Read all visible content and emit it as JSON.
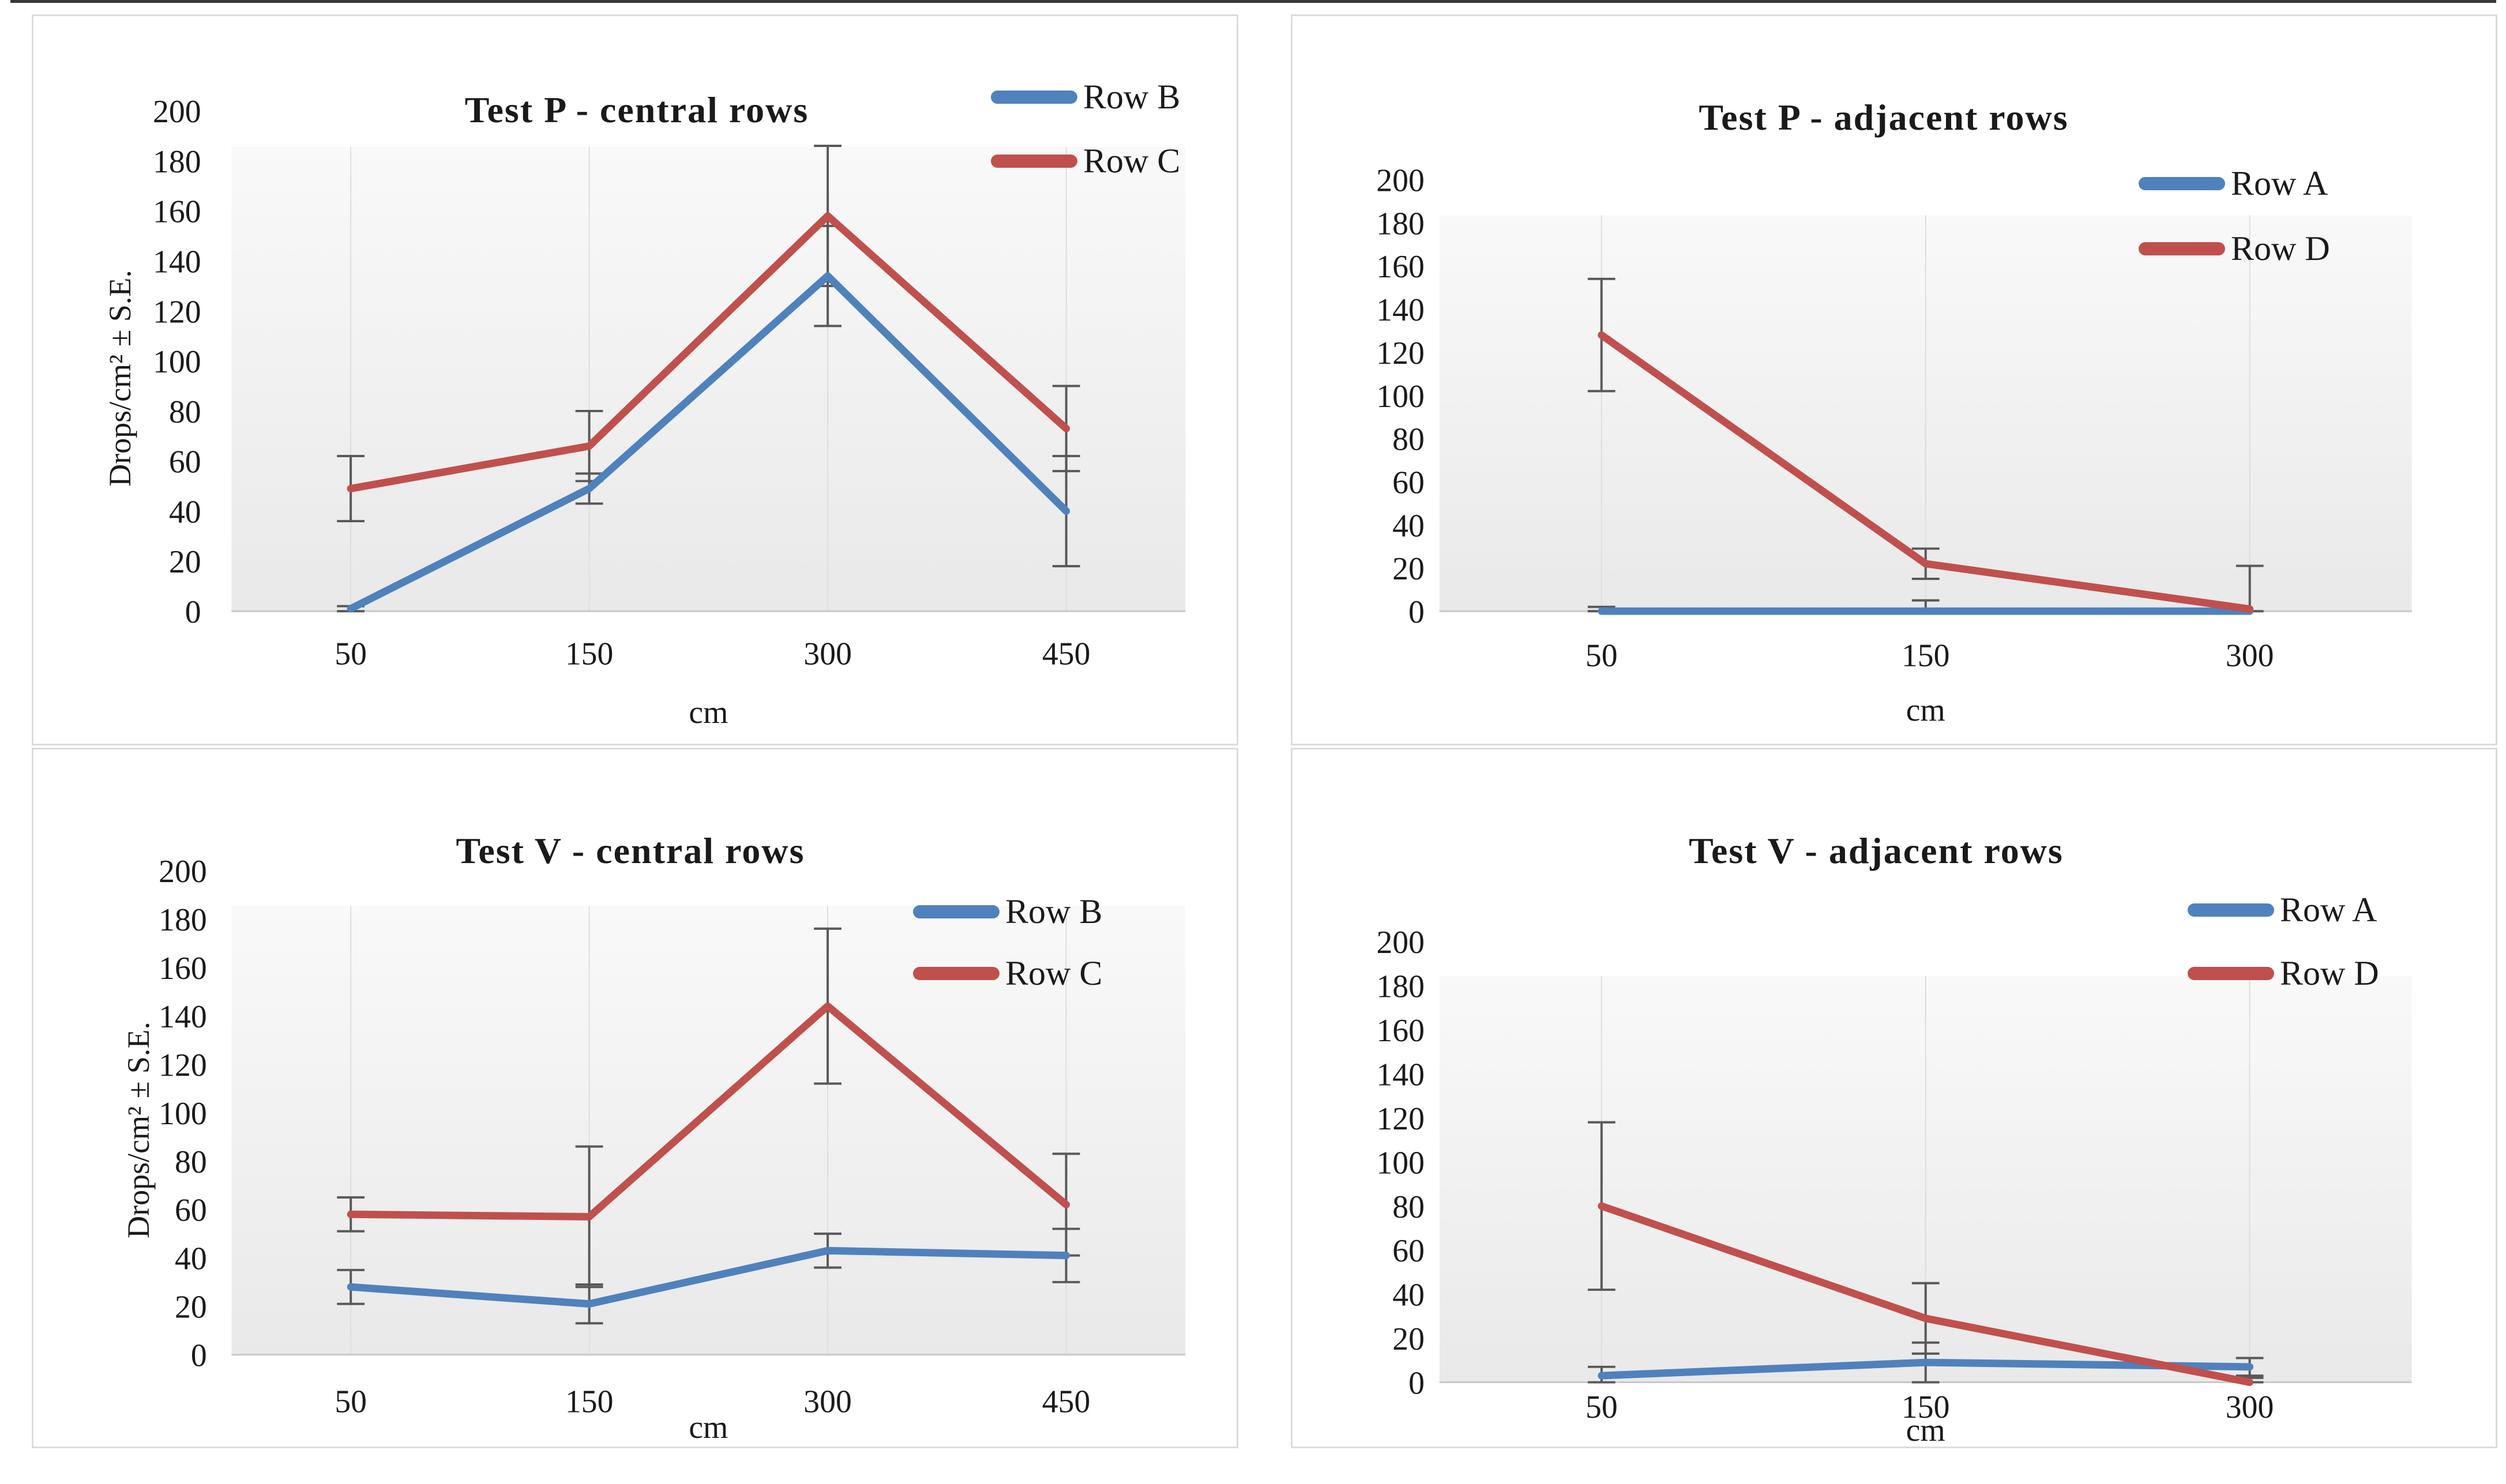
{
  "page": {
    "background": "#ffffff",
    "top_border_color": "#3a3a3a"
  },
  "palette": {
    "series_blue": "#4F81BD",
    "series_red": "#C0504D",
    "error_bar": "#595959",
    "axis_line": "#c8c8c8",
    "gridline": "#dedede",
    "plot_fill_top": "#f9f9f9",
    "plot_fill_bottom": "#e9e9e9"
  },
  "chart_data": [
    {
      "type": "line",
      "title": "Test P - central rows",
      "ylabel": "Drops/cm² ± S.E.",
      "xlabel": "cm",
      "categories": [
        "50",
        "150",
        "300",
        "450"
      ],
      "y_ticks": [
        0,
        20,
        40,
        60,
        80,
        100,
        120,
        140,
        160,
        180,
        200
      ],
      "ylim": [
        0,
        200
      ],
      "grid": "vertical-only",
      "legend_pos": "top-right",
      "series": [
        {
          "name": "Row B",
          "color": "#4F81BD",
          "values": [
            1,
            49,
            134,
            40
          ],
          "errors": [
            1,
            6,
            20,
            22
          ]
        },
        {
          "name": "Row C",
          "color": "#C0504D",
          "values": [
            49,
            66,
            158,
            73
          ],
          "errors": [
            13,
            14,
            28,
            17
          ]
        }
      ]
    },
    {
      "type": "line",
      "title": "Test P - adjacent rows",
      "ylabel": "",
      "xlabel": "cm",
      "categories": [
        "50",
        "150",
        "300"
      ],
      "y_ticks": [
        0,
        20,
        40,
        60,
        80,
        100,
        120,
        140,
        160,
        180,
        200
      ],
      "ylim": [
        0,
        200
      ],
      "grid": "vertical-only",
      "legend_pos": "middle-right",
      "series": [
        {
          "name": "Row A",
          "color": "#4F81BD",
          "values": [
            0,
            0,
            0
          ],
          "errors": [
            2,
            5,
            0
          ]
        },
        {
          "name": "Row D",
          "color": "#C0504D",
          "values": [
            128,
            22,
            1
          ],
          "errors": [
            26,
            7,
            20
          ]
        }
      ]
    },
    {
      "type": "line",
      "title": "Test V - central rows",
      "ylabel": "Drops/cm² ± S.E.",
      "xlabel": "cm",
      "categories": [
        "50",
        "150",
        "300",
        "450"
      ],
      "y_ticks": [
        0,
        20,
        40,
        60,
        80,
        100,
        120,
        140,
        160,
        180,
        200
      ],
      "ylim": [
        0,
        200
      ],
      "grid": "vertical-only",
      "legend_pos": "upper-right",
      "series": [
        {
          "name": "Row B",
          "color": "#4F81BD",
          "values": [
            28,
            21,
            43,
            41
          ],
          "errors": [
            7,
            8,
            7,
            11
          ]
        },
        {
          "name": "Row C",
          "color": "#C0504D",
          "values": [
            58,
            57,
            144,
            62
          ],
          "errors": [
            7,
            29,
            32,
            21
          ]
        }
      ]
    },
    {
      "type": "line",
      "title": "Test V - adjacent rows",
      "ylabel": "",
      "xlabel": "cm",
      "categories": [
        "50",
        "150",
        "300"
      ],
      "y_ticks": [
        0,
        20,
        40,
        60,
        80,
        100,
        120,
        140,
        160,
        180,
        200
      ],
      "ylim": [
        0,
        200
      ],
      "grid": "vertical-only",
      "legend_pos": "upper-right",
      "series": [
        {
          "name": "Row A",
          "color": "#4F81BD",
          "values": [
            3,
            9,
            7
          ],
          "errors": [
            4,
            9,
            4
          ]
        },
        {
          "name": "Row D",
          "color": "#C0504D",
          "values": [
            80,
            29,
            0
          ],
          "errors": [
            38,
            16,
            2
          ]
        }
      ]
    }
  ]
}
